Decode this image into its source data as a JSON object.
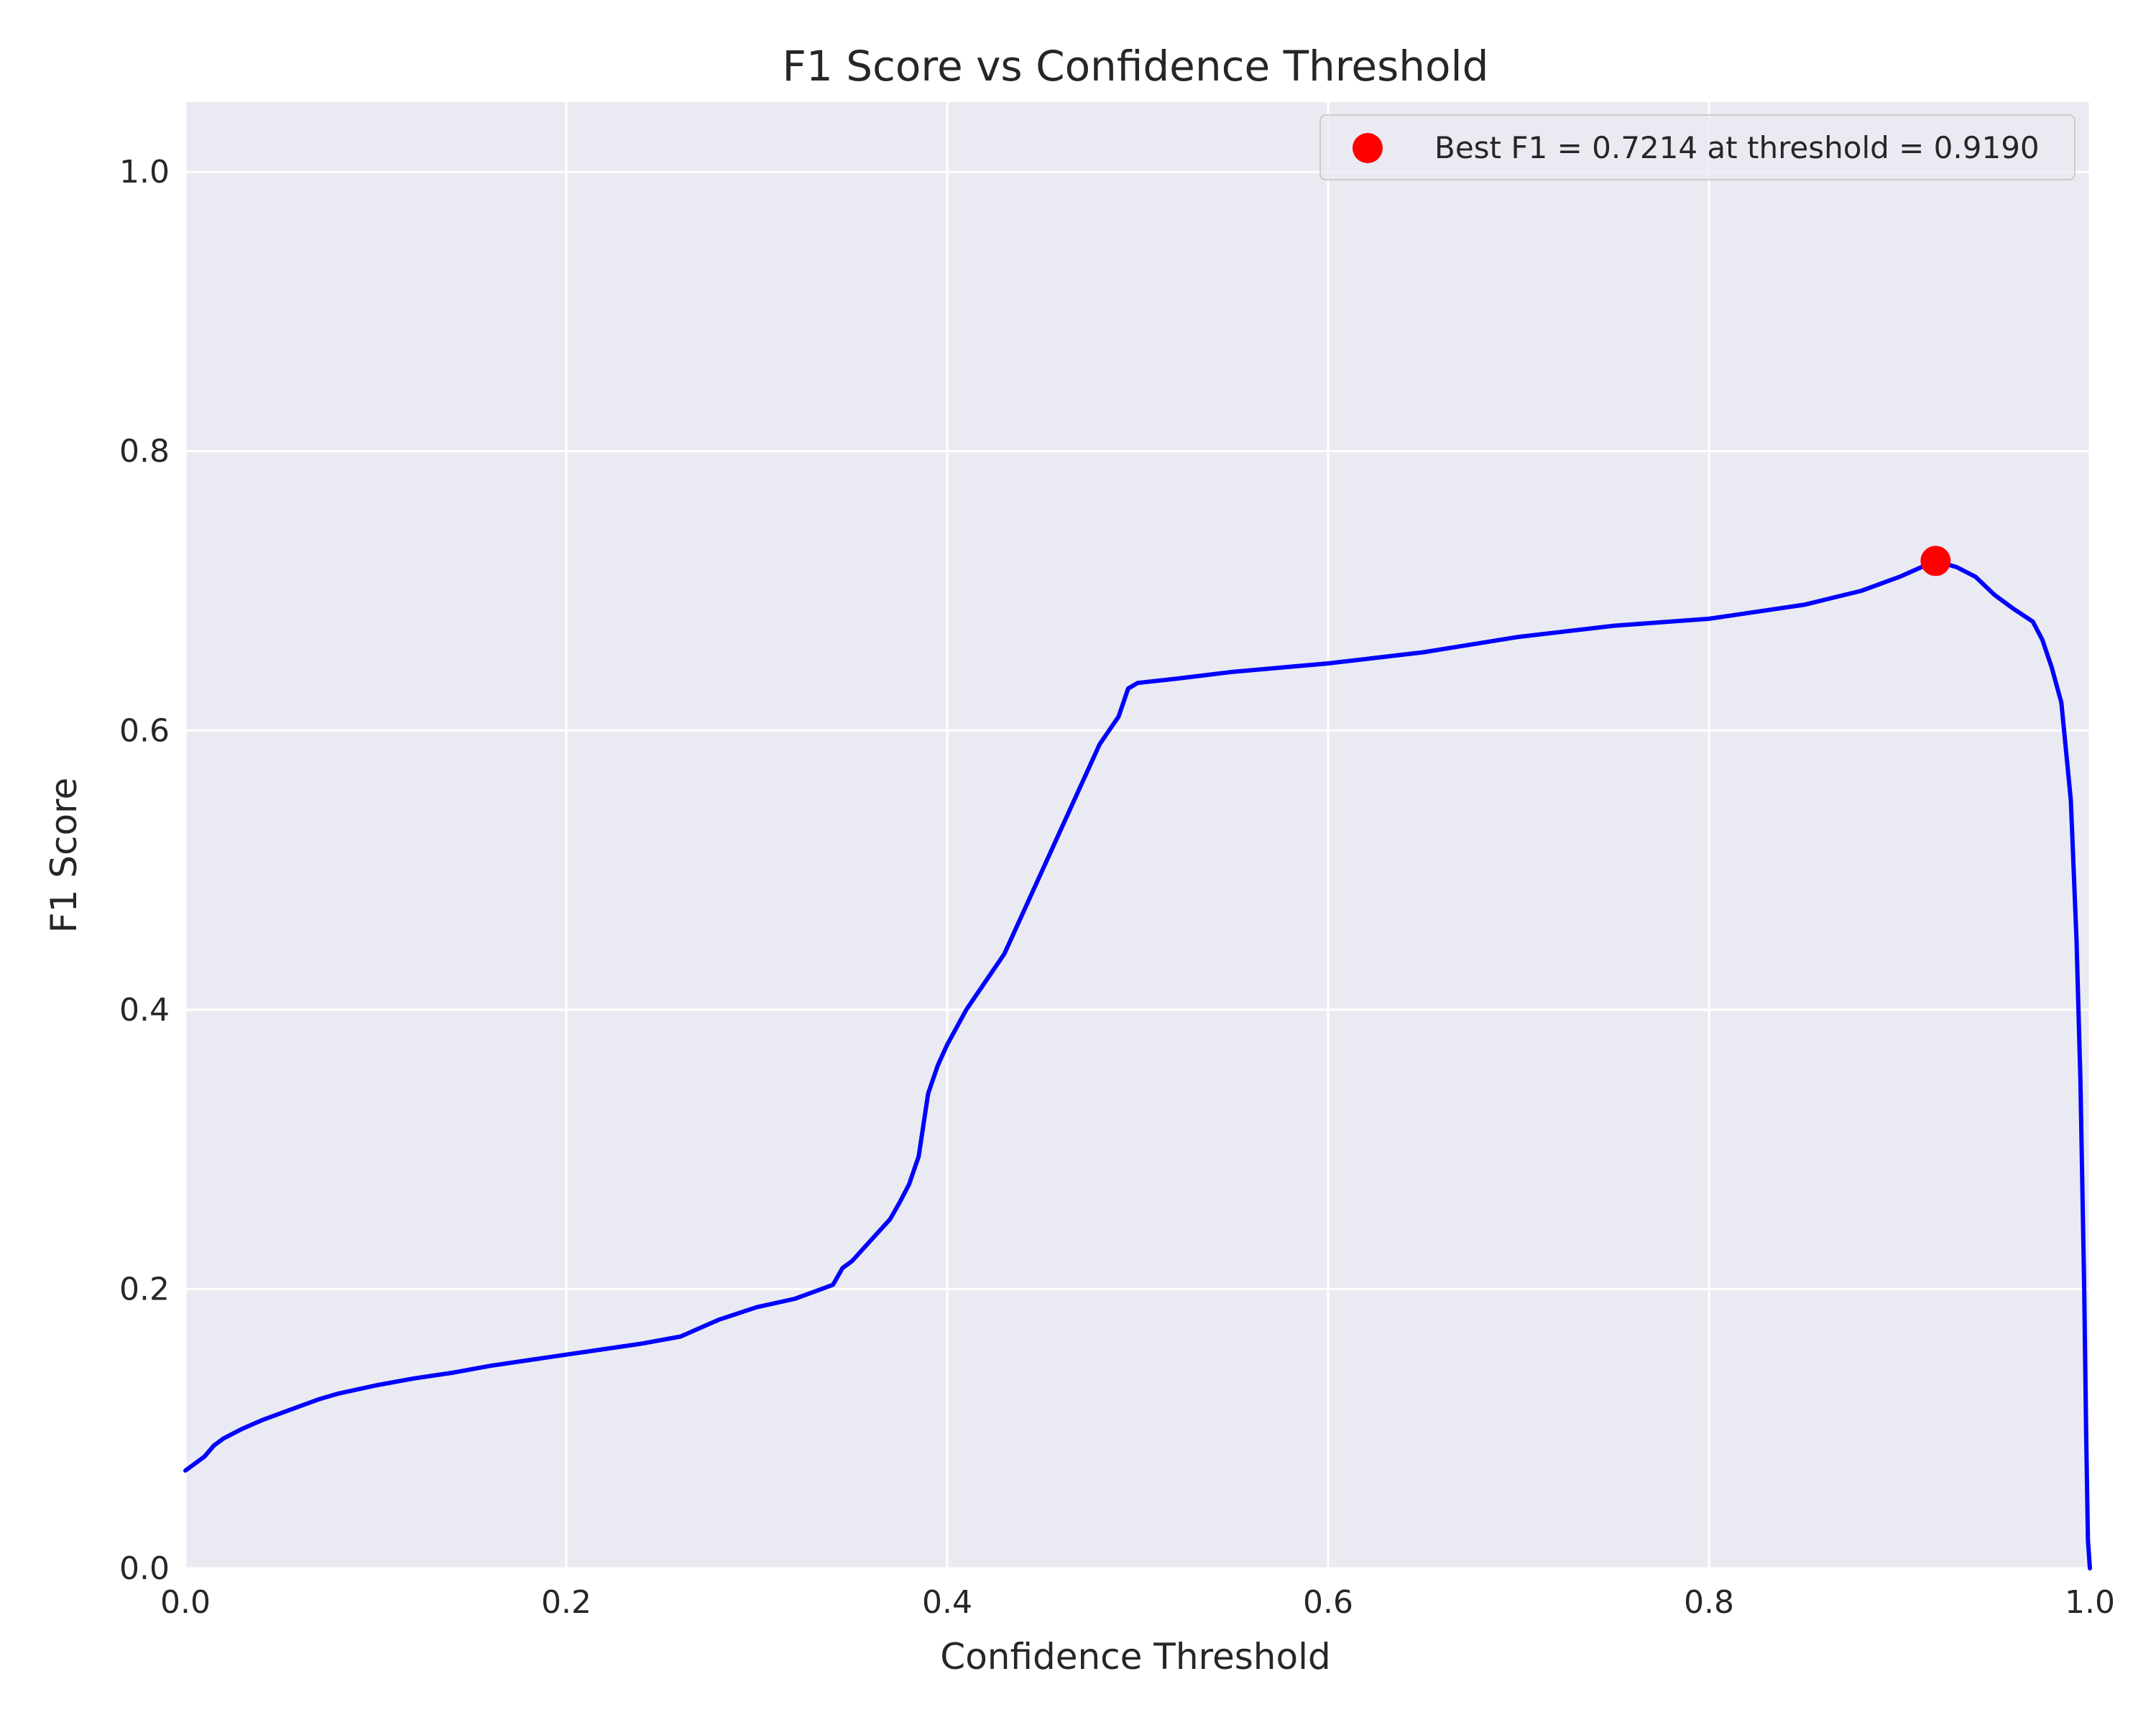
{
  "chart_data": {
    "type": "line",
    "title": "F1 Score vs Confidence Threshold",
    "xlabel": "Confidence Threshold",
    "ylabel": "F1 Score",
    "xlim": [
      0.0,
      1.0
    ],
    "ylim": [
      0.0,
      1.05
    ],
    "xticks": [
      0.0,
      0.2,
      0.4,
      0.6,
      0.8,
      1.0
    ],
    "xtick_labels": [
      "0.0",
      "0.2",
      "0.4",
      "0.6",
      "0.8",
      "1.0"
    ],
    "yticks": [
      0.0,
      0.2,
      0.4,
      0.6,
      0.8,
      1.0
    ],
    "ytick_labels": [
      "0.0",
      "0.2",
      "0.4",
      "0.6",
      "0.8",
      "1.0"
    ],
    "grid": true,
    "legend_position": "top-right",
    "background_color": "#eaeaf2",
    "grid_color": "#ffffff",
    "series": [
      {
        "color": "#0000ff",
        "x": [
          0.0,
          0.01,
          0.015,
          0.02,
          0.03,
          0.04,
          0.05,
          0.06,
          0.07,
          0.08,
          0.09,
          0.1,
          0.12,
          0.14,
          0.16,
          0.18,
          0.2,
          0.22,
          0.24,
          0.26,
          0.28,
          0.3,
          0.32,
          0.34,
          0.345,
          0.35,
          0.36,
          0.37,
          0.375,
          0.38,
          0.385,
          0.39,
          0.395,
          0.4,
          0.41,
          0.42,
          0.43,
          0.44,
          0.45,
          0.46,
          0.47,
          0.48,
          0.49,
          0.495,
          0.5,
          0.52,
          0.55,
          0.6,
          0.65,
          0.7,
          0.75,
          0.8,
          0.85,
          0.88,
          0.9,
          0.919,
          0.93,
          0.94,
          0.95,
          0.96,
          0.97,
          0.975,
          0.98,
          0.985,
          0.99,
          0.993,
          0.995,
          0.997,
          0.998,
          0.999,
          0.9995,
          1.0
        ],
        "y": [
          0.07,
          0.08,
          0.088,
          0.093,
          0.1,
          0.106,
          0.111,
          0.116,
          0.121,
          0.125,
          0.128,
          0.131,
          0.136,
          0.14,
          0.145,
          0.149,
          0.153,
          0.157,
          0.161,
          0.166,
          0.178,
          0.187,
          0.193,
          0.203,
          0.215,
          0.22,
          0.235,
          0.25,
          0.262,
          0.275,
          0.295,
          0.34,
          0.36,
          0.375,
          0.4,
          0.42,
          0.44,
          0.47,
          0.5,
          0.53,
          0.56,
          0.59,
          0.61,
          0.63,
          0.634,
          0.637,
          0.642,
          0.648,
          0.656,
          0.667,
          0.675,
          0.68,
          0.69,
          0.7,
          0.71,
          0.7214,
          0.717,
          0.71,
          0.697,
          0.687,
          0.678,
          0.665,
          0.645,
          0.62,
          0.55,
          0.45,
          0.35,
          0.2,
          0.1,
          0.02,
          0.01,
          0.0
        ]
      }
    ],
    "best_point": {
      "x": 0.919,
      "y": 0.7214,
      "color": "#ff0000",
      "label": "Best F1 = 0.7214 at threshold = 0.9190"
    }
  }
}
